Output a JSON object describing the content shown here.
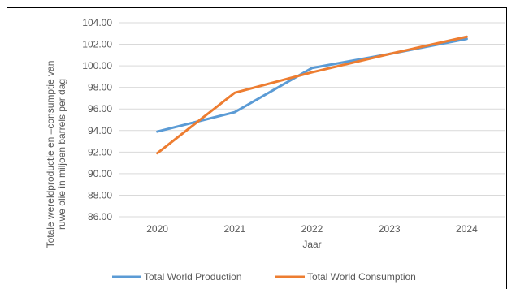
{
  "chart_data": {
    "type": "line",
    "title": "",
    "xlabel": "Jaar",
    "ylabel_line1": "Totale wereldproductie en –consumptie van",
    "ylabel_line2": "ruwe olie in miljoen barrels per dag",
    "categories": [
      "2020",
      "2021",
      "2022",
      "2023",
      "2024"
    ],
    "ylim": [
      86,
      104
    ],
    "ystep": 2,
    "ytick_labels": [
      "86.00",
      "88.00",
      "90.00",
      "92.00",
      "94.00",
      "96.00",
      "98.00",
      "100.00",
      "102.00",
      "104.00"
    ],
    "grid": true,
    "legend_position": "bottom",
    "series": [
      {
        "name": "Total World Production",
        "color": "#5B9BD5",
        "values": [
          93.9,
          95.7,
          99.8,
          101.1,
          102.5
        ]
      },
      {
        "name": "Total World Consumption",
        "color": "#ED7D31",
        "values": [
          91.9,
          97.5,
          99.4,
          101.1,
          102.7
        ]
      }
    ]
  }
}
